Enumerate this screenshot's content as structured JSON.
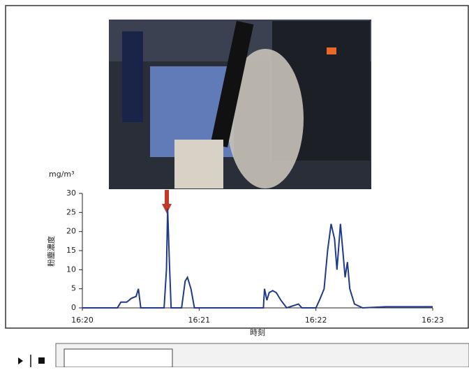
{
  "chart_data": {
    "type": "line",
    "unit_label": "mg/m³",
    "y_label": "粉塵濃度",
    "x_label": "時刻",
    "x": [
      0,
      0.3,
      0.33,
      0.38,
      0.42,
      0.46,
      0.48,
      0.5,
      0.7,
      0.72,
      0.73,
      0.745,
      0.76,
      0.85,
      0.88,
      0.9,
      0.93,
      0.96,
      1.55,
      1.56,
      1.58,
      1.6,
      1.63,
      1.66,
      1.7,
      1.75,
      1.85,
      1.88,
      2.0,
      2.03,
      2.07,
      2.1,
      2.13,
      2.16,
      2.18,
      2.21,
      2.23,
      2.25,
      2.27,
      2.29,
      2.33,
      2.4,
      2.6,
      3.0
    ],
    "values": [
      0,
      0,
      1.5,
      1.5,
      2.5,
      3,
      5,
      0,
      0,
      10,
      26,
      12,
      0,
      0,
      7,
      8,
      5,
      0,
      0,
      5,
      2,
      4,
      4.5,
      4,
      2,
      0,
      1,
      0,
      0,
      2,
      5,
      15,
      22,
      18,
      10,
      22,
      15,
      8,
      12,
      5,
      1,
      0,
      0.3,
      0.3
    ],
    "color": "#1f3a8a",
    "xlim": [
      0,
      3
    ],
    "xticks": [
      {
        "value": 0,
        "label": "16:20"
      },
      {
        "value": 1,
        "label": "16:21"
      },
      {
        "value": 2,
        "label": "16:22"
      },
      {
        "value": 3,
        "label": "16:23"
      }
    ],
    "ylim": [
      0,
      30
    ],
    "yticks": [
      0,
      5,
      10,
      15,
      20,
      25,
      30
    ]
  }
}
